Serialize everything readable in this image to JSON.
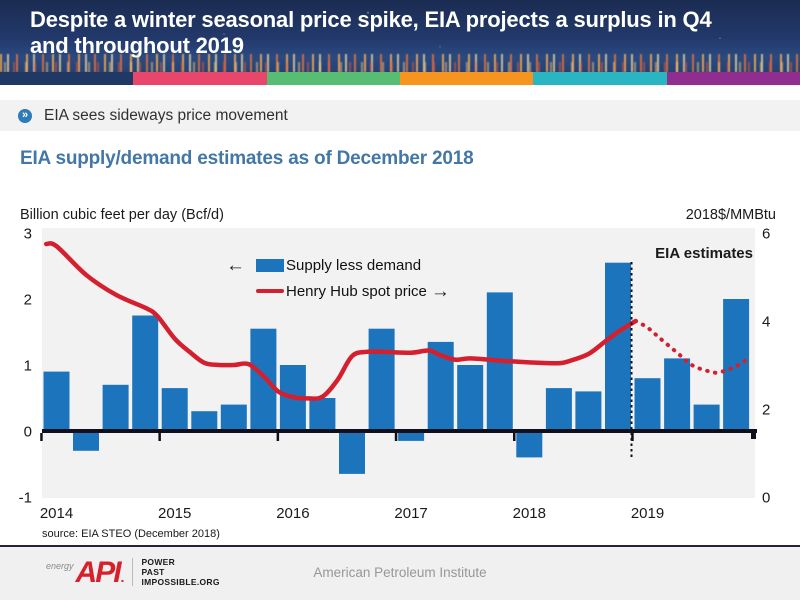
{
  "slide": {
    "header": {
      "title_line1": "Despite a winter seasonal price spike, EIA projects a surplus in Q4",
      "title_line2": "and throughout 2019"
    },
    "accent_strip_colors": [
      "#1f3864",
      "#e8476b",
      "#56bd72",
      "#f5941f",
      "#2ab5c3",
      "#8f2e8e"
    ],
    "bullet": {
      "icon": "chevron-circle-icon",
      "icon_glyph": "»",
      "text": "EIA sees sideways price movement"
    },
    "chart_title": "EIA supply/demand estimates as of December 2018",
    "footer": {
      "brand_prefix": "energy",
      "brand": "API",
      "brand_dot": ".",
      "tagline_lines": [
        "POWER",
        "PAST",
        "IMPOSSIBLE.ORG"
      ],
      "org": "American Petroleum Institute"
    }
  },
  "chart_data": {
    "type": "bar",
    "subtype": "dual-axis combo: quarterly bars (left axis) + smoothed line (right axis)",
    "title": "EIA supply/demand estimates as of December 2018",
    "left_axis": {
      "label": "Billion cubic feet per day (Bcf/d)",
      "ticks": [
        3,
        2,
        1,
        0,
        -1
      ],
      "range": [
        -1,
        3
      ]
    },
    "right_axis": {
      "label": "2018$/MMBtu",
      "ticks": [
        6,
        4,
        2,
        0
      ],
      "range": [
        0,
        6
      ]
    },
    "x_axis": {
      "tick_labels": [
        "2014",
        "2015",
        "2016",
        "2017",
        "2018",
        "2019"
      ],
      "unit": "quarter"
    },
    "annotation": "EIA estimates",
    "source_note": "source:  EIA STEO (December 2018)",
    "grid": false,
    "plot_background": "#f2f2f2",
    "legend": [
      {
        "label": "Supply less demand",
        "type": "bar",
        "color": "#1c75bc",
        "arrow": "left",
        "position": "inside top-center"
      },
      {
        "label": "Henry Hub spot price",
        "type": "line",
        "color": "#d41f2e",
        "arrow": "right",
        "position": "inside top-center"
      }
    ],
    "categories": [
      "2014 Q1",
      "2014 Q2",
      "2014 Q3",
      "2014 Q4",
      "2015 Q1",
      "2015 Q2",
      "2015 Q3",
      "2015 Q4",
      "2016 Q1",
      "2016 Q2",
      "2016 Q3",
      "2016 Q4",
      "2017 Q1",
      "2017 Q2",
      "2017 Q3",
      "2017 Q4",
      "2018 Q1",
      "2018 Q2",
      "2018 Q3",
      "2018 Q4",
      "2019 Q1",
      "2019 Q2",
      "2019 Q3",
      "2019 Q4"
    ],
    "series": [
      {
        "name": "Supply less demand",
        "type": "bar",
        "axis": "left",
        "color": "#1c75bc",
        "values": [
          0.9,
          -0.3,
          0.7,
          1.75,
          0.65,
          0.3,
          0.4,
          1.55,
          1.0,
          0.5,
          -0.65,
          1.55,
          -0.15,
          1.35,
          1.0,
          2.1,
          -0.4,
          0.65,
          0.6,
          2.55,
          0.8,
          1.1,
          0.4,
          2.0
        ]
      },
      {
        "name": "Henry Hub spot price",
        "type": "line",
        "axis": "right",
        "color": "#d41f2e",
        "solid_points": [
          [
            -0.35,
            5.75
          ],
          [
            0,
            5.7
          ],
          [
            1,
            5.05
          ],
          [
            2,
            4.6
          ],
          [
            3,
            4.3
          ],
          [
            3.4,
            4.12
          ],
          [
            4,
            3.6
          ],
          [
            4.5,
            3.3
          ],
          [
            5,
            3.05
          ],
          [
            5.5,
            3.0
          ],
          [
            6,
            3.0
          ],
          [
            6.5,
            3.02
          ],
          [
            7,
            2.75
          ],
          [
            7.5,
            2.4
          ],
          [
            8,
            2.27
          ],
          [
            8.5,
            2.24
          ],
          [
            9,
            2.28
          ],
          [
            9.5,
            2.65
          ],
          [
            10,
            3.2
          ],
          [
            10.5,
            3.3
          ],
          [
            11,
            3.3
          ],
          [
            12,
            3.28
          ],
          [
            12.6,
            3.33
          ],
          [
            13,
            3.22
          ],
          [
            13.5,
            3.12
          ],
          [
            14,
            3.15
          ],
          [
            15,
            3.1
          ],
          [
            16,
            3.06
          ],
          [
            17,
            3.04
          ],
          [
            17.4,
            3.1
          ],
          [
            18,
            3.25
          ],
          [
            18.5,
            3.5
          ],
          [
            19,
            3.75
          ],
          [
            19.6,
            4.0
          ]
        ],
        "dotted_points": [
          [
            19.6,
            4.0
          ],
          [
            20,
            3.85
          ],
          [
            20.4,
            3.62
          ],
          [
            21,
            3.28
          ],
          [
            21.5,
            3.0
          ],
          [
            22,
            2.87
          ],
          [
            22.4,
            2.83
          ],
          [
            23,
            2.97
          ],
          [
            23.4,
            3.15
          ]
        ],
        "estimate_boundary_after": "2018 Q4"
      }
    ]
  }
}
